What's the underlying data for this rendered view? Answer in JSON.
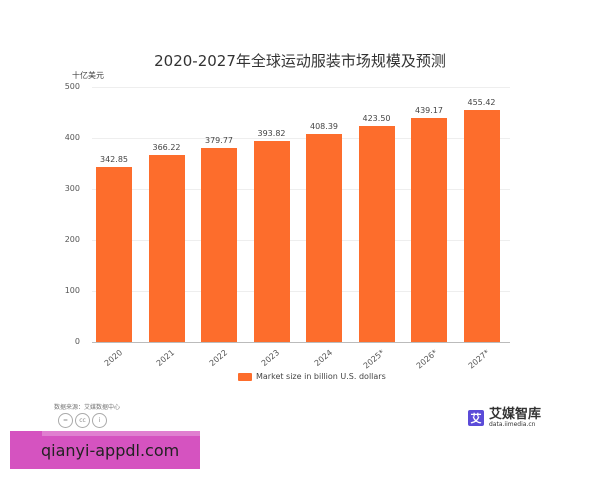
{
  "title": "2020-2027年全球运动服装市场规模及预测",
  "unit": "十亿美元",
  "legend": "Market size in billion U.S. dollars",
  "source": "数据来源：艾媒数据中心",
  "cc_icons": [
    "equals-icon",
    "cc-icon",
    "person-icon"
  ],
  "brand": {
    "name": "艾媒智库",
    "url": "data.iimedia.cn",
    "logo": "艾"
  },
  "watermark": "qianyi-appdl.com",
  "colors": {
    "bar": "#fd6d2c",
    "watermark": "#d553c0",
    "brand": "#5b4bd8"
  },
  "chart_data": {
    "type": "bar",
    "title": "2020-2027年全球运动服装市场规模及预测",
    "ylabel": "十亿美元",
    "xlabel": "",
    "categories": [
      "2020",
      "2021",
      "2022",
      "2023",
      "2024",
      "2025*",
      "2026*",
      "2027*"
    ],
    "values": [
      342.85,
      366.22,
      379.77,
      393.82,
      408.39,
      423.5,
      439.17,
      455.42
    ],
    "value_labels": [
      "342.85",
      "366.22",
      "379.77",
      "393.82",
      "408.39",
      "423.50",
      "439.17",
      "455.42"
    ],
    "series": [
      {
        "name": "Market size in billion U.S. dollars",
        "values": [
          342.85,
          366.22,
          379.77,
          393.82,
          408.39,
          423.5,
          439.17,
          455.42
        ]
      }
    ],
    "yticks": [
      "0",
      "100",
      "200",
      "300",
      "400",
      "500"
    ],
    "ylim": [
      0,
      500
    ],
    "grid": true,
    "legend_position": "bottom"
  }
}
